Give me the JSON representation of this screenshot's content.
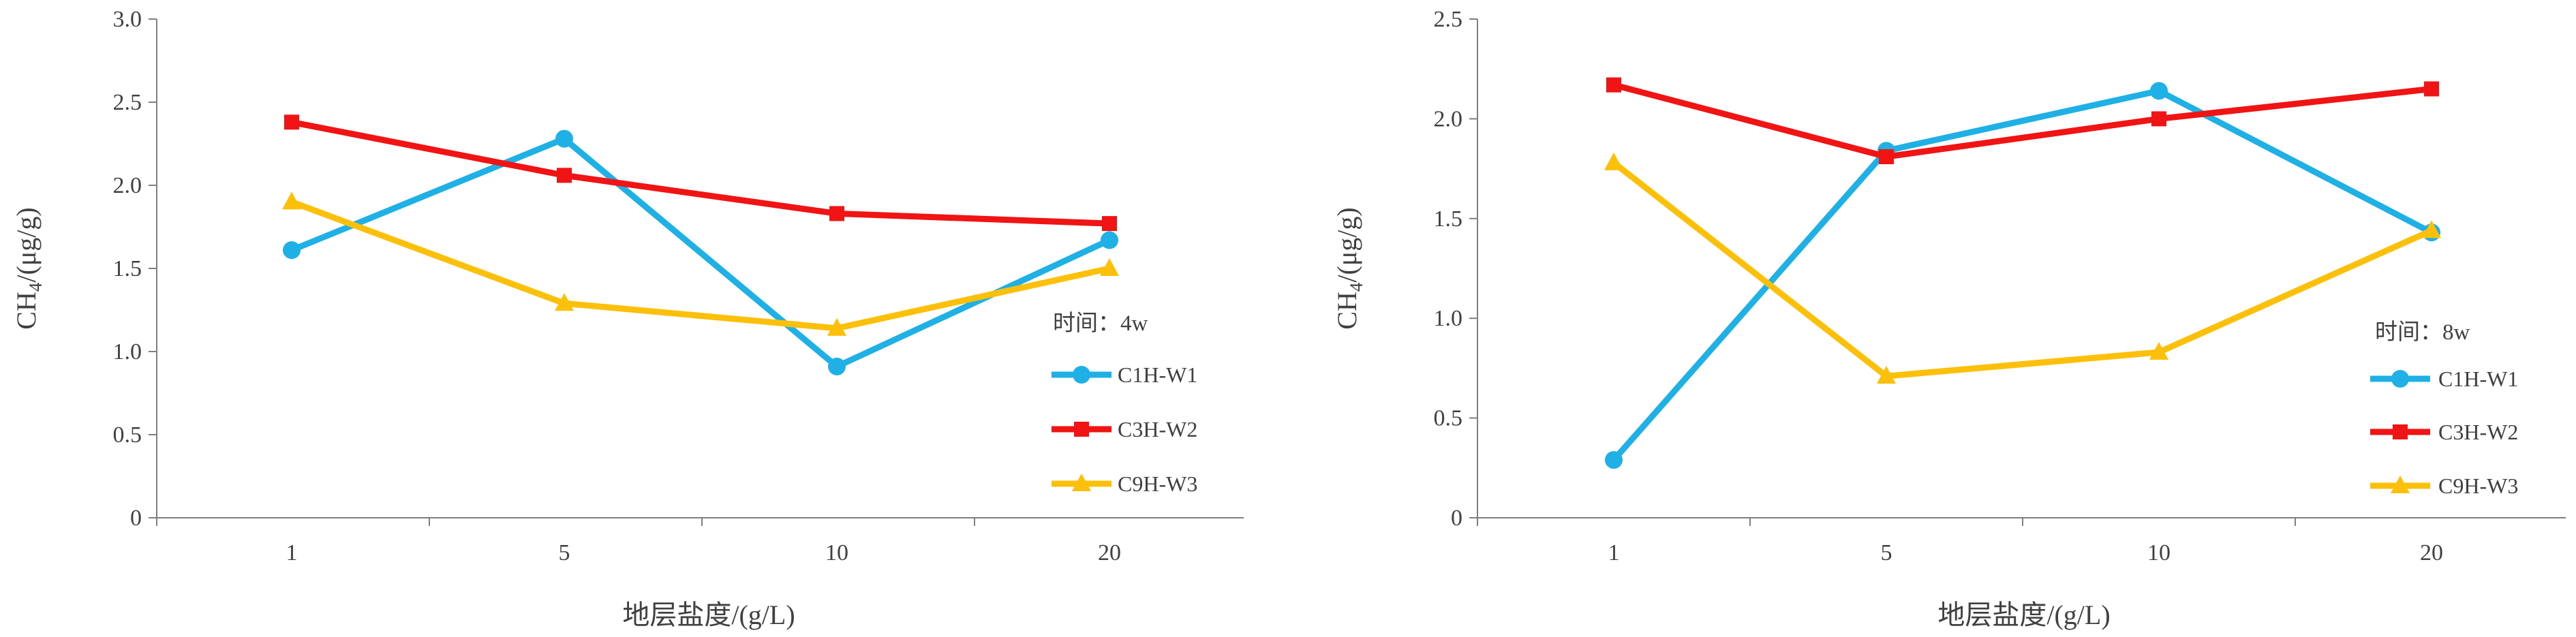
{
  "chart_data": [
    {
      "type": "line",
      "categories": [
        "1",
        "5",
        "10",
        "20"
      ],
      "xlabel": "地层盐度/(g/L)",
      "ylabel_main": "CH",
      "ylabel_sub": "4",
      "ylabel_unit": "/(μg/g)",
      "ylim": [
        0,
        3.0
      ],
      "yticks": [
        "0",
        "0.5",
        "1.0",
        "1.5",
        "2.0",
        "2.5",
        "3.0"
      ],
      "ytick_values": [
        0,
        0.5,
        1.0,
        1.5,
        2.0,
        2.5,
        3.0
      ],
      "legend_title": "时间：4w",
      "legend_position": "right",
      "grid": false,
      "series": [
        {
          "name": "C1H-W1",
          "color": "#1FB0E6",
          "marker": "circle",
          "values": [
            1.61,
            2.28,
            0.91,
            1.67
          ]
        },
        {
          "name": "C3H-W2",
          "color": "#F01414",
          "marker": "square",
          "values": [
            2.38,
            2.06,
            1.83,
            1.77
          ]
        },
        {
          "name": "C9H-W3",
          "color": "#FCC00A",
          "marker": "triangle",
          "values": [
            1.9,
            1.29,
            1.14,
            1.5
          ]
        }
      ]
    },
    {
      "type": "line",
      "categories": [
        "1",
        "5",
        "10",
        "20"
      ],
      "xlabel": "地层盐度/(g/L)",
      "ylabel_main": "CH",
      "ylabel_sub": "4",
      "ylabel_unit": "/(μg/g)",
      "ylim": [
        0,
        2.5
      ],
      "yticks": [
        "0",
        "0.5",
        "1.0",
        "1.5",
        "2.0",
        "2.5"
      ],
      "ytick_values": [
        0,
        0.5,
        1.0,
        1.5,
        2.0,
        2.5
      ],
      "legend_title": "时间：8w",
      "legend_position": "right",
      "grid": false,
      "series": [
        {
          "name": "C1H-W1",
          "color": "#1FB0E6",
          "marker": "circle",
          "values": [
            0.29,
            1.84,
            2.14,
            1.43
          ]
        },
        {
          "name": "C3H-W2",
          "color": "#F01414",
          "marker": "square",
          "values": [
            2.17,
            1.81,
            2.0,
            2.15
          ]
        },
        {
          "name": "C9H-W3",
          "color": "#FCC00A",
          "marker": "triangle",
          "values": [
            1.78,
            0.71,
            0.83,
            1.44
          ]
        }
      ]
    }
  ]
}
